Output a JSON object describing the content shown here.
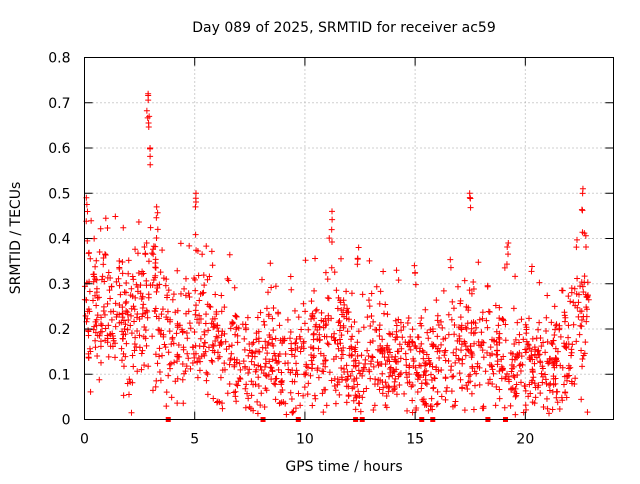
{
  "chart_data": {
    "type": "scatter",
    "title": "Day 089 of 2025, SRMTID for receiver ac59",
    "xlabel": "GPS time / hours",
    "ylabel": "SRMTID / TECUs",
    "xlim": [
      0,
      24
    ],
    "ylim": [
      0,
      0.8
    ],
    "x_ticks": [
      0,
      5,
      10,
      15,
      20
    ],
    "y_ticks": [
      0,
      0.1,
      0.2,
      0.3,
      0.4,
      0.5,
      0.6,
      0.7,
      0.8
    ],
    "x_tick_labels": [
      "0",
      "5",
      "10",
      "15",
      "20"
    ],
    "y_tick_labels": [
      "0",
      "0.1",
      "0.2",
      "0.3",
      "0.4",
      "0.5",
      "0.6",
      "0.7",
      "0.8"
    ],
    "grid": true,
    "marker": "+",
    "color": "#ff0000",
    "trend": [
      [
        0.0,
        0.22
      ],
      [
        0.5,
        0.25
      ],
      [
        1.0,
        0.24
      ],
      [
        1.5,
        0.23
      ],
      [
        2.0,
        0.19
      ],
      [
        2.5,
        0.22
      ],
      [
        3.0,
        0.27
      ],
      [
        3.5,
        0.21
      ],
      [
        4.0,
        0.18
      ],
      [
        4.5,
        0.17
      ],
      [
        5.0,
        0.19
      ],
      [
        5.5,
        0.2
      ],
      [
        6.0,
        0.17
      ],
      [
        6.5,
        0.15
      ],
      [
        7.0,
        0.14
      ],
      [
        7.5,
        0.11
      ],
      [
        8.0,
        0.13
      ],
      [
        8.5,
        0.14
      ],
      [
        9.0,
        0.12
      ],
      [
        9.5,
        0.13
      ],
      [
        10.0,
        0.14
      ],
      [
        10.5,
        0.18
      ],
      [
        11.0,
        0.19
      ],
      [
        11.5,
        0.16
      ],
      [
        12.0,
        0.12
      ],
      [
        12.5,
        0.1
      ],
      [
        13.0,
        0.16
      ],
      [
        13.5,
        0.14
      ],
      [
        14.0,
        0.11
      ],
      [
        14.5,
        0.13
      ],
      [
        15.0,
        0.16
      ],
      [
        15.5,
        0.1
      ],
      [
        16.0,
        0.12
      ],
      [
        16.5,
        0.15
      ],
      [
        17.0,
        0.16
      ],
      [
        17.5,
        0.17
      ],
      [
        18.0,
        0.14
      ],
      [
        18.5,
        0.15
      ],
      [
        19.0,
        0.13
      ],
      [
        19.5,
        0.1
      ],
      [
        20.0,
        0.14
      ],
      [
        20.5,
        0.11
      ],
      [
        21.0,
        0.11
      ],
      [
        21.5,
        0.12
      ],
      [
        22.0,
        0.16
      ],
      [
        22.5,
        0.25
      ],
      [
        22.9,
        0.27
      ]
    ],
    "peaks": [
      {
        "x": 2.85,
        "y": 0.72
      },
      {
        "x": 2.9,
        "y": 0.67
      },
      {
        "x": 2.95,
        "y": 0.6
      },
      {
        "x": 0.1,
        "y": 0.49
      },
      {
        "x": 5.05,
        "y": 0.5
      },
      {
        "x": 11.2,
        "y": 0.46
      },
      {
        "x": 17.5,
        "y": 0.5
      },
      {
        "x": 22.6,
        "y": 0.51
      },
      {
        "x": 15.0,
        "y": 0.34
      },
      {
        "x": 19.2,
        "y": 0.39
      },
      {
        "x": 12.4,
        "y": 0.38
      },
      {
        "x": 3.3,
        "y": 0.47
      }
    ],
    "zero_points": [
      3.8,
      8.1,
      9.7,
      12.3,
      12.6,
      15.3,
      15.8,
      18.3,
      19.1
    ]
  }
}
